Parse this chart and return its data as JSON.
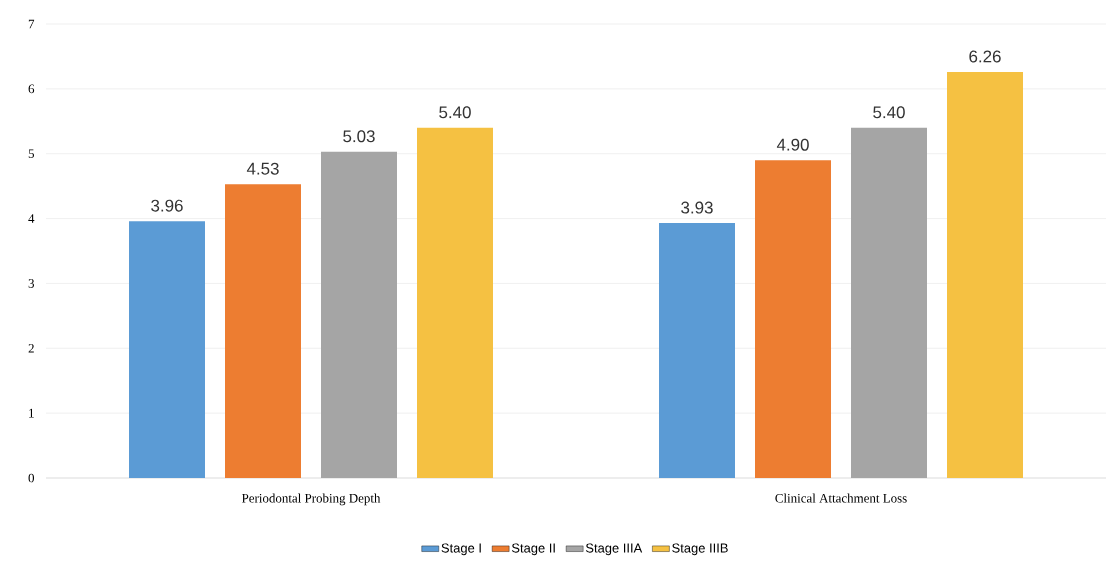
{
  "chart_data": {
    "type": "bar",
    "categories": [
      "Periodontal Probing Depth",
      "Clinical Attachment Loss"
    ],
    "series": [
      {
        "name": "Stage I",
        "color": "#5b9bd5",
        "values": [
          3.96,
          3.93
        ],
        "value_labels": [
          "3.96",
          "3.93"
        ]
      },
      {
        "name": "Stage II",
        "color": "#ed7d31",
        "values": [
          4.53,
          4.9
        ],
        "value_labels": [
          "4.53",
          "4.90"
        ]
      },
      {
        "name": "Stage IIIA",
        "color": "#a5a5a5",
        "values": [
          5.03,
          5.4
        ],
        "value_labels": [
          "5.03",
          "5.40"
        ]
      },
      {
        "name": "Stage IIIB",
        "color": "#f5c142",
        "values": [
          5.4,
          6.26
        ],
        "value_labels": [
          "5.40",
          "6.26"
        ]
      }
    ],
    "ylim": [
      0,
      7
    ],
    "yticks": [
      0,
      1,
      2,
      3,
      4,
      5,
      6,
      7
    ],
    "grid": "y",
    "legend": "bottom"
  }
}
